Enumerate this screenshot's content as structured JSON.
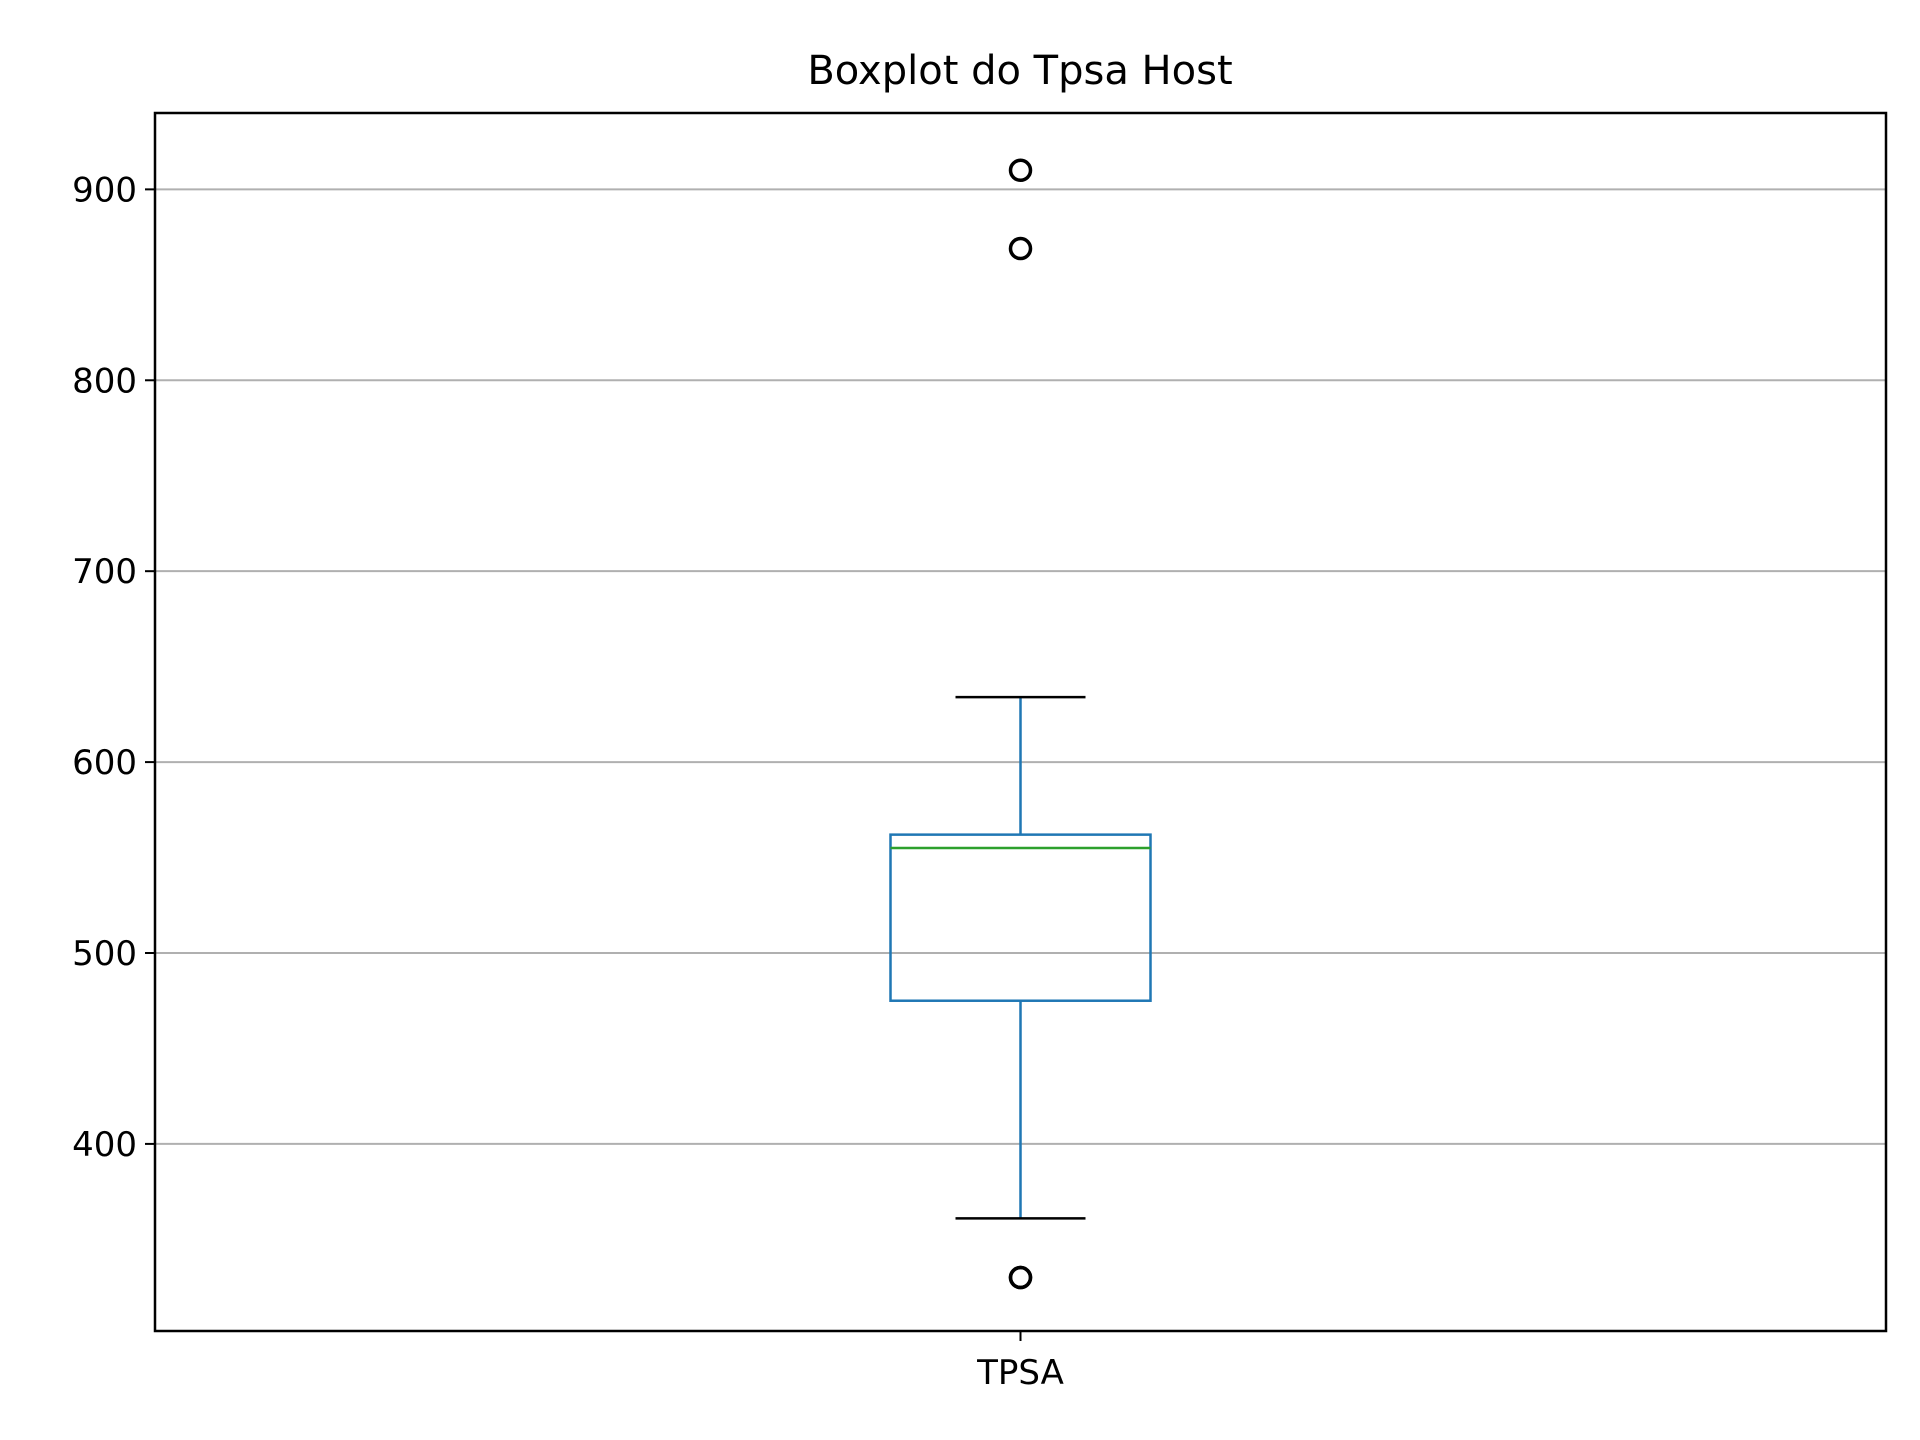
{
  "chart_data": {
    "type": "boxplot",
    "title": "Boxplot do Tpsa Host",
    "xlabel": "",
    "ylabel": "",
    "categories": [
      "TPSA"
    ],
    "boxes": [
      {
        "label": "TPSA",
        "whisker_low": 361,
        "q1": 475,
        "median": 555,
        "q3": 562,
        "whisker_high": 634,
        "outliers": [
          910,
          869,
          330,
          330
        ]
      }
    ],
    "ylim": [
      302,
      940
    ],
    "yticks": [
      400,
      500,
      600,
      700,
      800,
      900
    ],
    "grid": "horizontal",
    "colors": {
      "box": "#1f77b4",
      "median": "#2ca02c",
      "caps": "#000000",
      "fliers": "#000000",
      "grid": "#b0b0b0",
      "axes": "#000000"
    }
  }
}
